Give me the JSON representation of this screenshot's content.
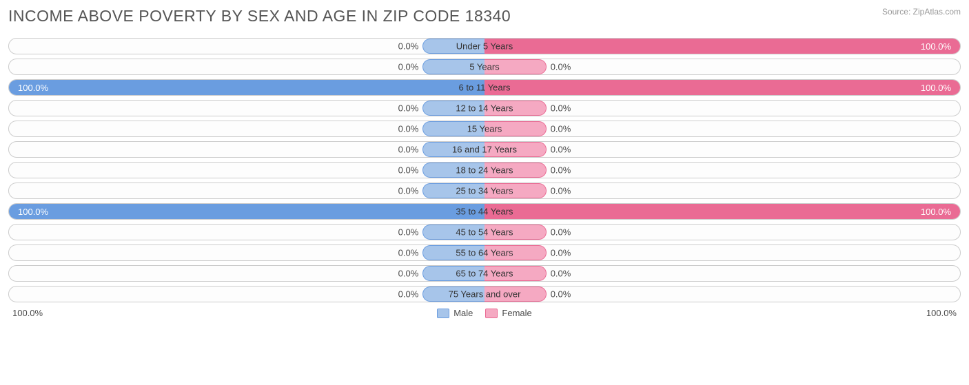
{
  "title": "INCOME ABOVE POVERTY BY SEX AND AGE IN ZIP CODE 18340",
  "source": "Source: ZipAtlas.com",
  "axis": {
    "left": "100.0%",
    "right": "100.0%"
  },
  "legend": {
    "male": "Male",
    "female": "Female"
  },
  "colors": {
    "male_fill": "#a7c5ea",
    "male_border": "#6a9de0",
    "male_full": "#6a9de0",
    "female_fill": "#f5a9c2",
    "female_border": "#ea6b94",
    "female_full": "#ea6b94",
    "background": "#ffffff",
    "row_border": "#cccccc",
    "text_dark": "#4a4a4a",
    "label_inside": "#ffffff"
  },
  "stub_pct": 13,
  "rows": [
    {
      "label": "Under 5 Years",
      "male": 0,
      "female": 100,
      "male_txt": "0.0%",
      "female_txt": "100.0%"
    },
    {
      "label": "5 Years",
      "male": 0,
      "female": 0,
      "male_txt": "0.0%",
      "female_txt": "0.0%"
    },
    {
      "label": "6 to 11 Years",
      "male": 100,
      "female": 100,
      "male_txt": "100.0%",
      "female_txt": "100.0%"
    },
    {
      "label": "12 to 14 Years",
      "male": 0,
      "female": 0,
      "male_txt": "0.0%",
      "female_txt": "0.0%"
    },
    {
      "label": "15 Years",
      "male": 0,
      "female": 0,
      "male_txt": "0.0%",
      "female_txt": "0.0%"
    },
    {
      "label": "16 and 17 Years",
      "male": 0,
      "female": 0,
      "male_txt": "0.0%",
      "female_txt": "0.0%"
    },
    {
      "label": "18 to 24 Years",
      "male": 0,
      "female": 0,
      "male_txt": "0.0%",
      "female_txt": "0.0%"
    },
    {
      "label": "25 to 34 Years",
      "male": 0,
      "female": 0,
      "male_txt": "0.0%",
      "female_txt": "0.0%"
    },
    {
      "label": "35 to 44 Years",
      "male": 100,
      "female": 100,
      "male_txt": "100.0%",
      "female_txt": "100.0%"
    },
    {
      "label": "45 to 54 Years",
      "male": 0,
      "female": 0,
      "male_txt": "0.0%",
      "female_txt": "0.0%"
    },
    {
      "label": "55 to 64 Years",
      "male": 0,
      "female": 0,
      "male_txt": "0.0%",
      "female_txt": "0.0%"
    },
    {
      "label": "65 to 74 Years",
      "male": 0,
      "female": 0,
      "male_txt": "0.0%",
      "female_txt": "0.0%"
    },
    {
      "label": "75 Years and over",
      "male": 0,
      "female": 0,
      "male_txt": "0.0%",
      "female_txt": "0.0%"
    }
  ]
}
